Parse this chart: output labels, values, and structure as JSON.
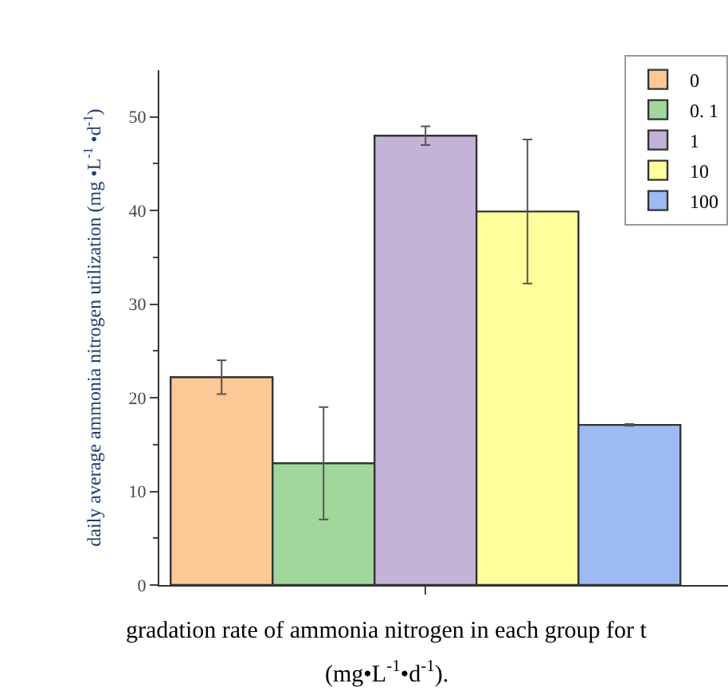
{
  "chart_data": {
    "type": "bar",
    "ylabel": "daily average ammonia nitrogen utilization (mg •L$^{-1}$ •d$^{-1}$)",
    "annotations": [
      "gradation rate of ammonia nitrogen in each group for t",
      "(mg•L$^{-1}$•d$^{-1}$)."
    ],
    "categories": [
      null
    ],
    "series": [
      {
        "name": "0",
        "color": "#fbc896",
        "values": [
          22.2
        ],
        "errors": [
          1.8
        ]
      },
      {
        "name": "0. 1",
        "color": "#a0d89c",
        "values": [
          13.0
        ],
        "errors": [
          6.0
        ]
      },
      {
        "name": "1",
        "color": "#c3b3d6",
        "values": [
          48.0
        ],
        "errors": [
          1.0
        ]
      },
      {
        "name": "10",
        "color": "#fffe9c",
        "values": [
          39.9
        ],
        "errors": [
          7.7
        ]
      },
      {
        "name": "100",
        "color": "#9dbbf2",
        "values": [
          17.1
        ],
        "errors": [
          0.1
        ]
      }
    ],
    "ylim": [
      0,
      55
    ],
    "yticks": [
      0,
      10,
      20,
      30,
      40,
      50
    ],
    "legend": "top right"
  }
}
